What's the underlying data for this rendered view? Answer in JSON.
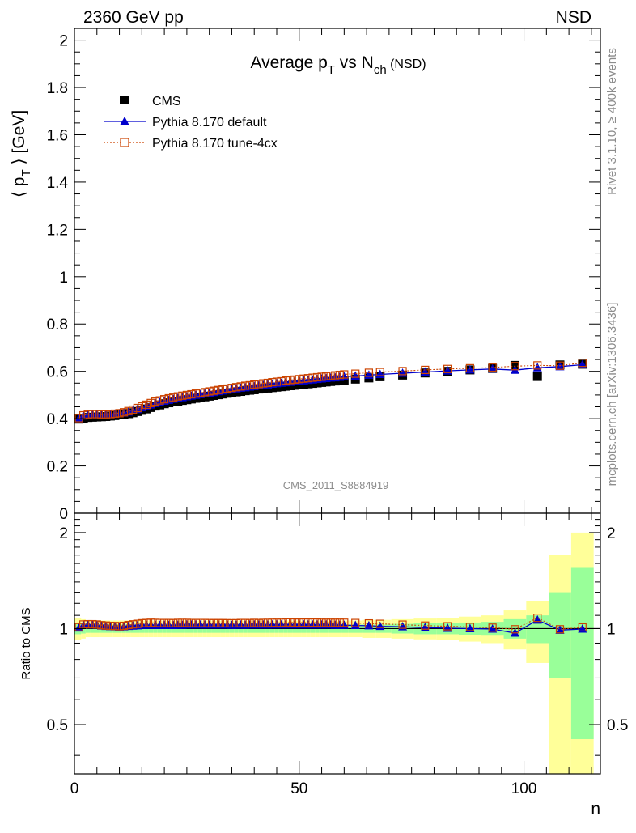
{
  "header": {
    "energy": "2360 GeV pp",
    "process": "NSD"
  },
  "side_labels": {
    "rivet": "Rivet 3.1.10, ≥ 400k events",
    "source": "mcplots.cern.ch [arXiv:1306.3436]"
  },
  "chart_data": [
    {
      "type": "scatter",
      "title_parts": {
        "a": "Average p",
        "a_sub": "T",
        "b": " vs N",
        "b_sub": "ch",
        "c": " (NSD)"
      },
      "ylabel_parts": {
        "pre": "⟨ p",
        "sub": "T",
        "post": " ⟩ [GeV]"
      },
      "analysis_label": "CMS_2011_S8884919",
      "xlim": [
        0,
        117
      ],
      "ylim": [
        0,
        2.05
      ],
      "y_ticks": [
        "0",
        "0.2",
        "0.4",
        "0.6",
        "0.8",
        "1",
        "1.2",
        "1.4",
        "1.6",
        "1.8",
        "2"
      ],
      "legend_position": "top-left",
      "series": [
        {
          "name": "CMS",
          "color": "#000000",
          "marker": "filled-square",
          "x": [
            1,
            2,
            3,
            4,
            5,
            6,
            7,
            8,
            9,
            10,
            11,
            12,
            13,
            14,
            15,
            16,
            17,
            18,
            19,
            20,
            21,
            22,
            23,
            24,
            25,
            26,
            27,
            28,
            29,
            30,
            31,
            32,
            33,
            34,
            35,
            36,
            37,
            38,
            39,
            40,
            41,
            42,
            43,
            44,
            45,
            46,
            47,
            48,
            49,
            50,
            51,
            52,
            53,
            54,
            55,
            56,
            57,
            58,
            59,
            60,
            62.5,
            65.5,
            68,
            73,
            78,
            83,
            88,
            93,
            98,
            103,
            108,
            113
          ],
          "y": [
            0.398,
            0.402,
            0.405,
            0.406,
            0.407,
            0.408,
            0.409,
            0.411,
            0.413,
            0.416,
            0.418,
            0.421,
            0.425,
            0.43,
            0.435,
            0.441,
            0.447,
            0.453,
            0.458,
            0.463,
            0.467,
            0.471,
            0.474,
            0.477,
            0.48,
            0.483,
            0.486,
            0.489,
            0.492,
            0.495,
            0.498,
            0.501,
            0.504,
            0.507,
            0.51,
            0.513,
            0.515,
            0.518,
            0.52,
            0.522,
            0.525,
            0.527,
            0.529,
            0.531,
            0.533,
            0.535,
            0.537,
            0.539,
            0.541,
            0.543,
            0.545,
            0.547,
            0.549,
            0.551,
            0.553,
            0.555,
            0.557,
            0.559,
            0.561,
            0.563,
            0.567,
            0.572,
            0.577,
            0.584,
            0.593,
            0.6,
            0.606,
            0.612,
            0.625,
            0.578,
            0.627,
            0.63
          ]
        },
        {
          "name": "Pythia 8.170 default",
          "color": "#0000cc",
          "marker": "filled-triangle",
          "x": [
            1,
            2,
            3,
            4,
            5,
            6,
            7,
            8,
            9,
            10,
            11,
            12,
            13,
            14,
            15,
            16,
            17,
            18,
            19,
            20,
            21,
            22,
            23,
            24,
            25,
            26,
            27,
            28,
            29,
            30,
            31,
            32,
            33,
            34,
            35,
            36,
            37,
            38,
            39,
            40,
            41,
            42,
            43,
            44,
            45,
            46,
            47,
            48,
            49,
            50,
            51,
            52,
            53,
            54,
            55,
            56,
            57,
            58,
            59,
            60,
            62.5,
            65.5,
            68,
            73,
            78,
            83,
            88,
            93,
            98,
            103,
            108,
            113
          ],
          "y": [
            0.4,
            0.412,
            0.416,
            0.417,
            0.417,
            0.416,
            0.416,
            0.417,
            0.419,
            0.421,
            0.424,
            0.428,
            0.433,
            0.439,
            0.446,
            0.452,
            0.458,
            0.464,
            0.469,
            0.474,
            0.478,
            0.482,
            0.486,
            0.489,
            0.493,
            0.496,
            0.499,
            0.502,
            0.505,
            0.508,
            0.511,
            0.514,
            0.517,
            0.52,
            0.523,
            0.526,
            0.529,
            0.531,
            0.534,
            0.536,
            0.539,
            0.541,
            0.543,
            0.546,
            0.548,
            0.55,
            0.552,
            0.554,
            0.556,
            0.558,
            0.56,
            0.562,
            0.564,
            0.566,
            0.568,
            0.57,
            0.572,
            0.573,
            0.575,
            0.577,
            0.58,
            0.584,
            0.587,
            0.592,
            0.597,
            0.602,
            0.606,
            0.61,
            0.605,
            0.615,
            0.62,
            0.628
          ]
        },
        {
          "name": "Pythia 8.170 tune-4cx",
          "color": "#cc4400",
          "marker": "open-square",
          "x": [
            1,
            2,
            3,
            4,
            5,
            6,
            7,
            8,
            9,
            10,
            11,
            12,
            13,
            14,
            15,
            16,
            17,
            18,
            19,
            20,
            21,
            22,
            23,
            24,
            25,
            26,
            27,
            28,
            29,
            30,
            31,
            32,
            33,
            34,
            35,
            36,
            37,
            38,
            39,
            40,
            41,
            42,
            43,
            44,
            45,
            46,
            47,
            48,
            49,
            50,
            51,
            52,
            53,
            54,
            55,
            56,
            57,
            58,
            59,
            60,
            62.5,
            65.5,
            68,
            73,
            78,
            83,
            88,
            93,
            98,
            103,
            108,
            113
          ],
          "y": [
            0.402,
            0.414,
            0.418,
            0.419,
            0.419,
            0.418,
            0.418,
            0.419,
            0.421,
            0.423,
            0.427,
            0.432,
            0.438,
            0.445,
            0.452,
            0.459,
            0.466,
            0.472,
            0.477,
            0.482,
            0.486,
            0.49,
            0.494,
            0.497,
            0.5,
            0.503,
            0.506,
            0.509,
            0.512,
            0.515,
            0.518,
            0.521,
            0.524,
            0.527,
            0.53,
            0.533,
            0.536,
            0.539,
            0.541,
            0.544,
            0.546,
            0.549,
            0.551,
            0.554,
            0.556,
            0.558,
            0.561,
            0.563,
            0.565,
            0.567,
            0.569,
            0.571,
            0.573,
            0.575,
            0.577,
            0.579,
            0.581,
            0.583,
            0.585,
            0.587,
            0.59,
            0.594,
            0.597,
            0.601,
            0.606,
            0.61,
            0.613,
            0.616,
            0.622,
            0.625,
            0.624,
            0.636
          ]
        }
      ]
    },
    {
      "type": "scatter",
      "ylabel": "Ratio to CMS",
      "xlabel": "n",
      "xlim": [
        0,
        117
      ],
      "ylim": [
        0.35,
        2.3
      ],
      "scale": "log",
      "x_ticks": [
        "0",
        "50",
        "100"
      ],
      "y_ticks": [
        "0.5",
        "1",
        "2"
      ],
      "bands": {
        "x_edges": [
          0,
          1.5,
          2.5,
          3.5,
          4.5,
          5.5,
          6.5,
          7.5,
          8.5,
          9.5,
          10.5,
          11.5,
          12.5,
          13.5,
          14.5,
          15.5,
          16.5,
          17.5,
          18.5,
          19.5,
          20.5,
          21.5,
          22.5,
          23.5,
          24.5,
          25.5,
          26.5,
          27.5,
          28.5,
          29.5,
          30.5,
          31.5,
          32.5,
          33.5,
          34.5,
          35.5,
          36.5,
          37.5,
          38.5,
          39.5,
          40.5,
          41.5,
          42.5,
          43.5,
          44.5,
          45.5,
          46.5,
          47.5,
          48.5,
          49.5,
          50.5,
          51.5,
          52.5,
          53.5,
          54.5,
          55.5,
          56.5,
          57.5,
          58.5,
          59.5,
          61,
          64,
          67,
          70.5,
          75.5,
          80.5,
          85.5,
          90.5,
          95.5,
          100.5,
          105.5,
          110.5,
          115.5
        ],
        "inner_halfwidth": [
          0.04,
          0.035,
          0.03,
          0.03,
          0.03,
          0.03,
          0.03,
          0.03,
          0.03,
          0.03,
          0.03,
          0.03,
          0.03,
          0.03,
          0.03,
          0.03,
          0.03,
          0.03,
          0.03,
          0.03,
          0.03,
          0.03,
          0.03,
          0.03,
          0.03,
          0.03,
          0.03,
          0.03,
          0.03,
          0.03,
          0.03,
          0.03,
          0.03,
          0.03,
          0.03,
          0.03,
          0.03,
          0.03,
          0.03,
          0.03,
          0.03,
          0.03,
          0.03,
          0.03,
          0.03,
          0.03,
          0.03,
          0.03,
          0.03,
          0.03,
          0.03,
          0.03,
          0.03,
          0.03,
          0.03,
          0.03,
          0.03,
          0.03,
          0.03,
          0.03,
          0.03,
          0.03,
          0.03,
          0.035,
          0.04,
          0.04,
          0.045,
          0.05,
          0.07,
          0.1,
          0.3,
          0.55
        ],
        "outer_halfwidth": [
          0.08,
          0.07,
          0.06,
          0.06,
          0.06,
          0.06,
          0.06,
          0.06,
          0.06,
          0.06,
          0.06,
          0.06,
          0.06,
          0.06,
          0.06,
          0.06,
          0.06,
          0.06,
          0.06,
          0.06,
          0.06,
          0.06,
          0.06,
          0.06,
          0.06,
          0.06,
          0.06,
          0.06,
          0.06,
          0.06,
          0.06,
          0.06,
          0.06,
          0.06,
          0.06,
          0.06,
          0.06,
          0.06,
          0.06,
          0.06,
          0.06,
          0.06,
          0.06,
          0.06,
          0.06,
          0.06,
          0.06,
          0.06,
          0.06,
          0.06,
          0.06,
          0.06,
          0.06,
          0.06,
          0.06,
          0.06,
          0.06,
          0.06,
          0.06,
          0.06,
          0.06,
          0.065,
          0.065,
          0.07,
          0.075,
          0.08,
          0.09,
          0.1,
          0.14,
          0.22,
          0.7,
          1.0
        ],
        "inner_color": "#99ff99",
        "outer_color": "#ffff99"
      },
      "series": [
        {
          "name": "Pythia 8.170 default",
          "color": "#0000cc",
          "marker": "filled-triangle",
          "x": [
            1,
            2,
            3,
            4,
            5,
            6,
            7,
            8,
            9,
            10,
            11,
            12,
            13,
            14,
            15,
            16,
            17,
            18,
            19,
            20,
            21,
            22,
            23,
            24,
            25,
            26,
            27,
            28,
            29,
            30,
            31,
            32,
            33,
            34,
            35,
            36,
            37,
            38,
            39,
            40,
            41,
            42,
            43,
            44,
            45,
            46,
            47,
            48,
            49,
            50,
            51,
            52,
            53,
            54,
            55,
            56,
            57,
            58,
            59,
            60,
            62.5,
            65.5,
            68,
            73,
            78,
            83,
            88,
            93,
            98,
            103,
            108,
            113
          ],
          "y": [
            1.005,
            1.025,
            1.027,
            1.027,
            1.025,
            1.02,
            1.017,
            1.015,
            1.014,
            1.012,
            1.014,
            1.017,
            1.019,
            1.021,
            1.025,
            1.025,
            1.025,
            1.024,
            1.024,
            1.024,
            1.024,
            1.023,
            1.025,
            1.025,
            1.027,
            1.027,
            1.027,
            1.027,
            1.026,
            1.026,
            1.026,
            1.026,
            1.026,
            1.026,
            1.025,
            1.025,
            1.027,
            1.025,
            1.027,
            1.027,
            1.027,
            1.027,
            1.026,
            1.028,
            1.028,
            1.028,
            1.028,
            1.028,
            1.028,
            1.028,
            1.028,
            1.027,
            1.027,
            1.027,
            1.027,
            1.027,
            1.027,
            1.025,
            1.025,
            1.025,
            1.023,
            1.021,
            1.017,
            1.014,
            1.007,
            1.003,
            1.0,
            0.997,
            0.968,
            1.064,
            0.989,
            0.997
          ]
        },
        {
          "name": "Pythia 8.170 tune-4cx",
          "color": "#cc4400",
          "marker": "open-square",
          "x": [
            1,
            2,
            3,
            4,
            5,
            6,
            7,
            8,
            9,
            10,
            11,
            12,
            13,
            14,
            15,
            16,
            17,
            18,
            19,
            20,
            21,
            22,
            23,
            24,
            25,
            26,
            27,
            28,
            29,
            30,
            31,
            32,
            33,
            34,
            35,
            36,
            37,
            38,
            39,
            40,
            41,
            42,
            43,
            44,
            45,
            46,
            47,
            48,
            49,
            50,
            51,
            52,
            53,
            54,
            55,
            56,
            57,
            58,
            59,
            60,
            62.5,
            65.5,
            68,
            73,
            78,
            83,
            88,
            93,
            98,
            103,
            108,
            113
          ],
          "y": [
            1.01,
            1.03,
            1.032,
            1.032,
            1.03,
            1.025,
            1.022,
            1.02,
            1.019,
            1.017,
            1.02,
            1.026,
            1.031,
            1.035,
            1.039,
            1.041,
            1.043,
            1.042,
            1.041,
            1.041,
            1.041,
            1.04,
            1.042,
            1.042,
            1.042,
            1.041,
            1.041,
            1.041,
            1.041,
            1.04,
            1.04,
            1.04,
            1.04,
            1.039,
            1.039,
            1.039,
            1.041,
            1.041,
            1.04,
            1.042,
            1.04,
            1.042,
            1.042,
            1.043,
            1.043,
            1.043,
            1.045,
            1.045,
            1.044,
            1.044,
            1.044,
            1.044,
            1.044,
            1.044,
            1.043,
            1.043,
            1.043,
            1.043,
            1.043,
            1.043,
            1.041,
            1.038,
            1.035,
            1.029,
            1.022,
            1.017,
            1.012,
            1.007,
            0.995,
            1.081,
            0.995,
            1.009
          ]
        }
      ]
    }
  ]
}
